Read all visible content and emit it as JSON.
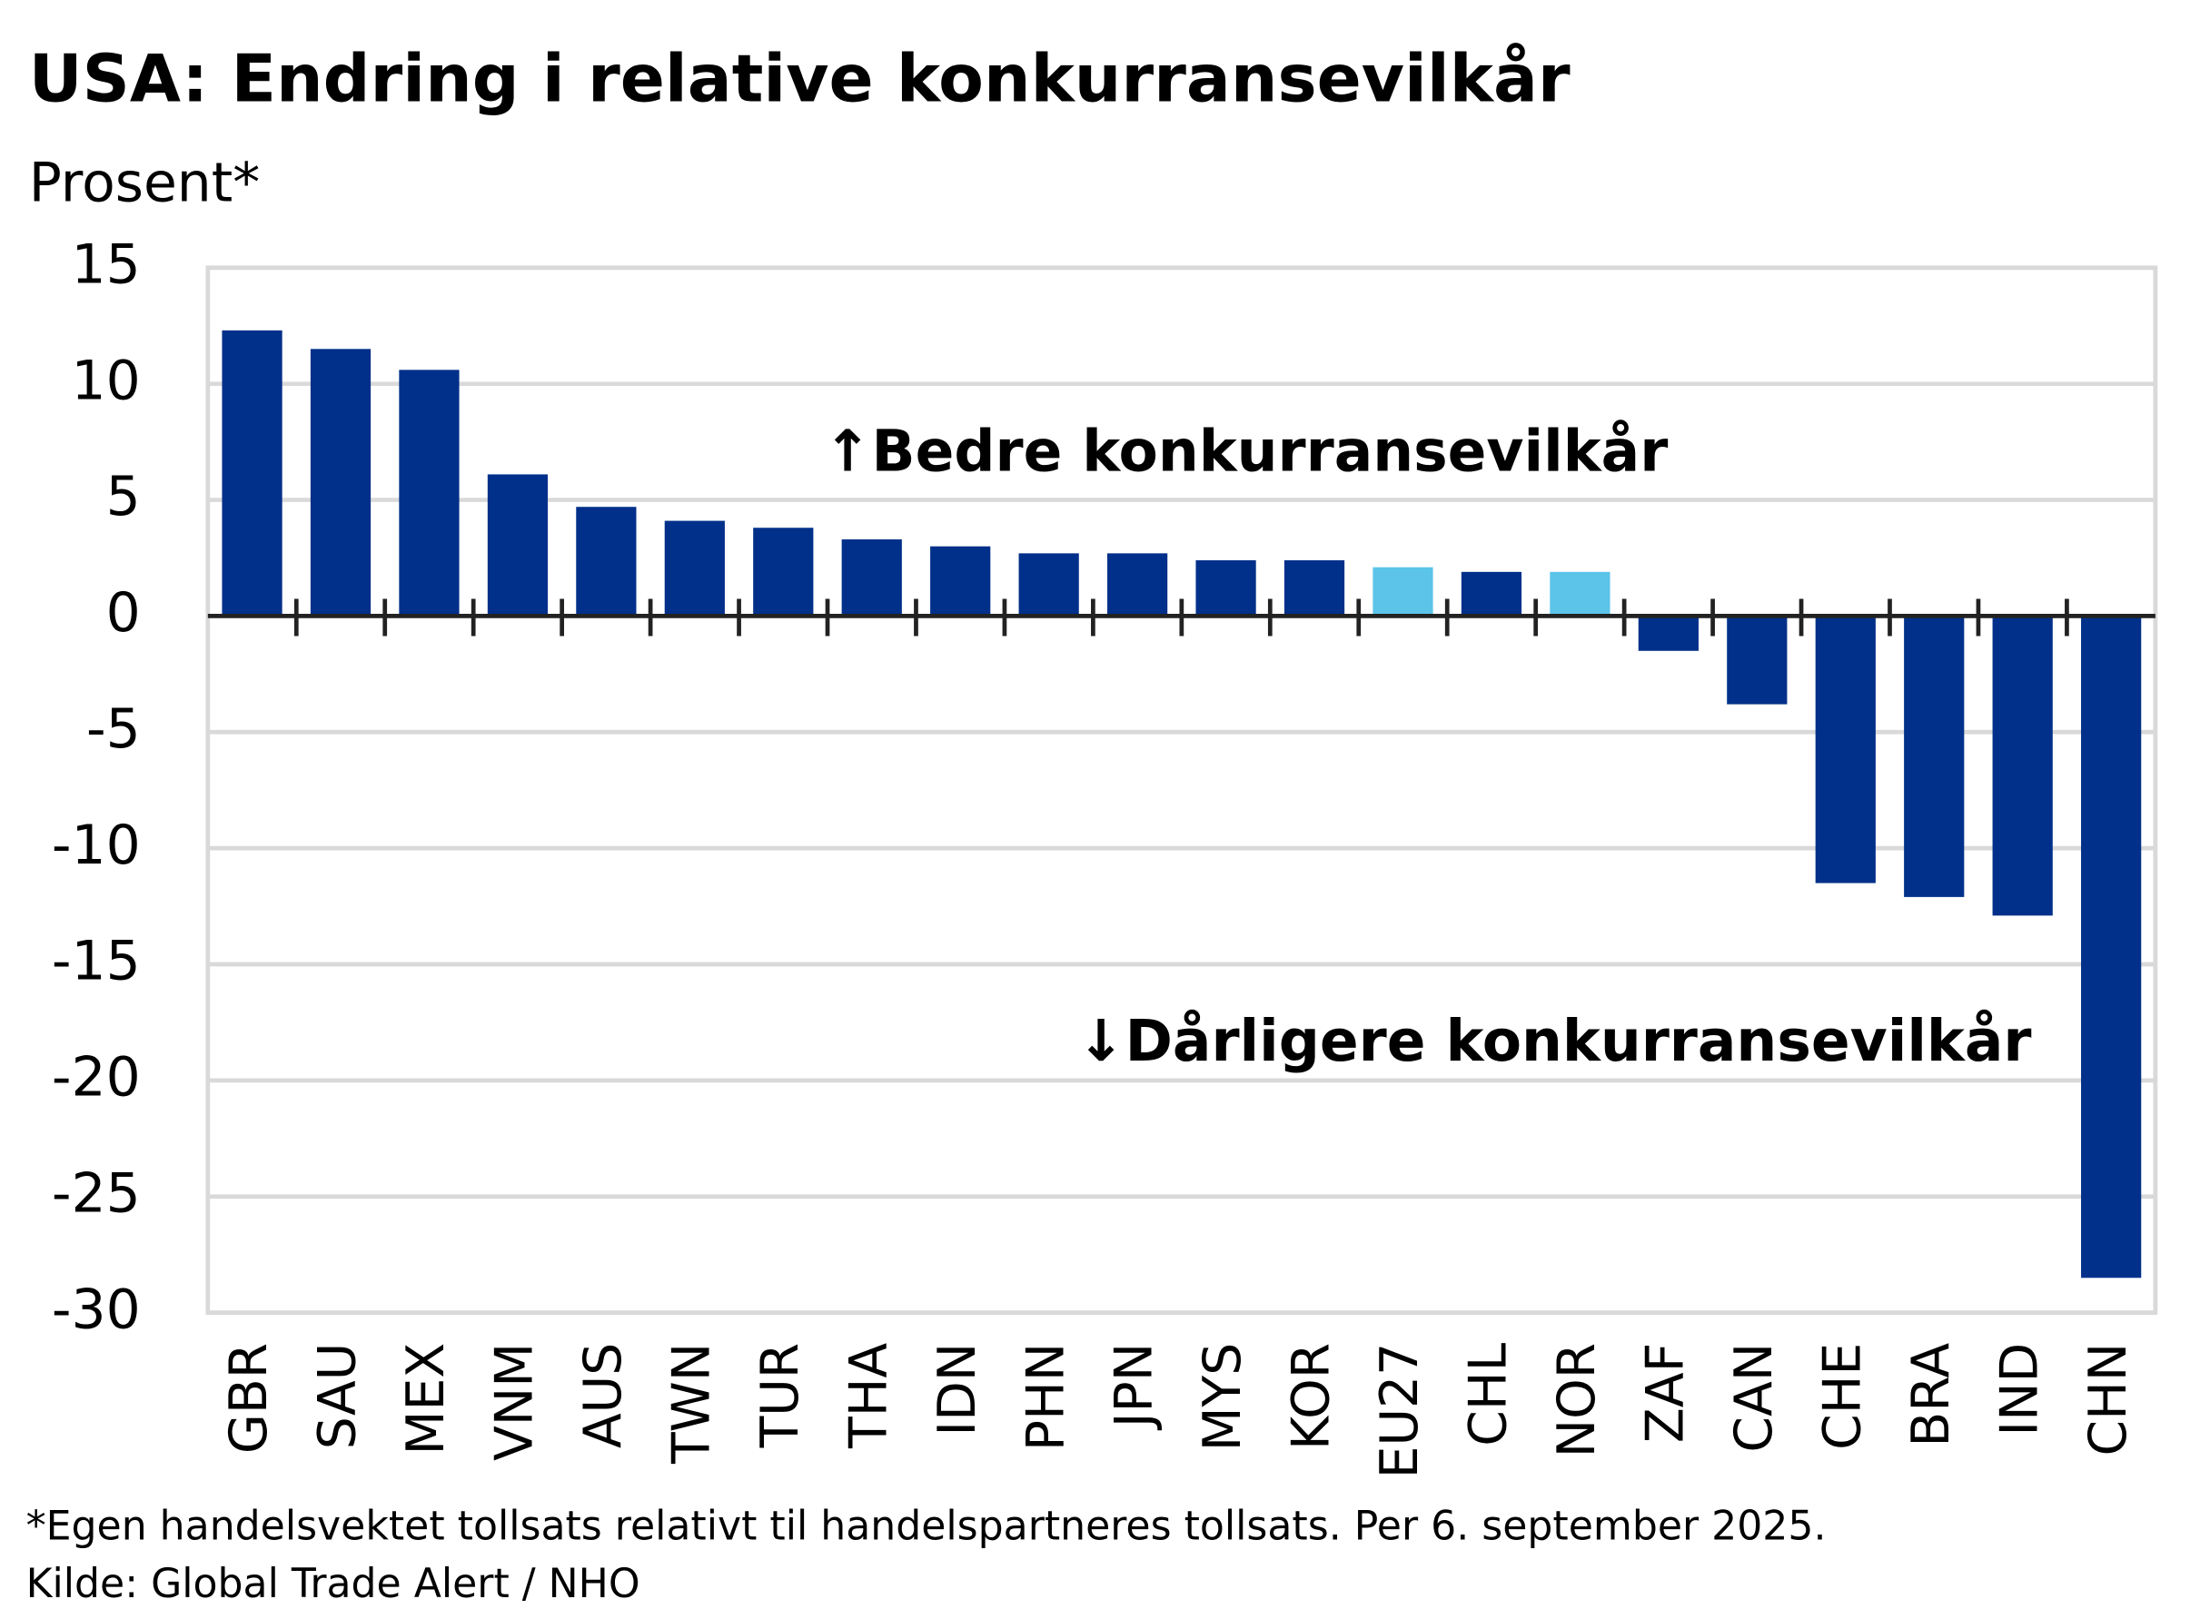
{
  "chart_data": {
    "type": "bar",
    "title": "USA:  Endring i relative konkurransevilkår",
    "subtitle": "Prosent*",
    "annotations": [
      "↑Bedre konkurransevilkår",
      "↓Dårligere konkurransevilkår"
    ],
    "footnotes": [
      "*Egen handelsvektet tollsats relativt til handelspartneres tollsats. Per 6. september 2025.",
      "Kilde: Global Trade Alert / NHO"
    ],
    "categories": [
      "GBR",
      "SAU",
      "MEX",
      "VNM",
      "AUS",
      "TWN",
      "TUR",
      "THA",
      "IDN",
      "PHN",
      "JPN",
      "MYS",
      "KOR",
      "EU27",
      "CHL",
      "NOR",
      "ZAF",
      "CAN",
      "CHE",
      "BRA",
      "IND",
      "CHN"
    ],
    "values": [
      12.3,
      11.5,
      10.6,
      6.1,
      4.7,
      4.1,
      3.8,
      3.3,
      3.0,
      2.7,
      2.7,
      2.4,
      2.4,
      2.1,
      1.9,
      1.9,
      -1.5,
      -3.8,
      -11.5,
      -12.1,
      -12.9,
      -28.5
    ],
    "colors": [
      "#00308a",
      "#00308a",
      "#00308a",
      "#00308a",
      "#00308a",
      "#00308a",
      "#00308a",
      "#00308a",
      "#00308a",
      "#00308a",
      "#00308a",
      "#00308a",
      "#00308a",
      "#5bc4e8",
      "#00308a",
      "#5bc4e8",
      "#00308a",
      "#00308a",
      "#00308a",
      "#00308a",
      "#00308a",
      "#00308a"
    ],
    "ylim": [
      -30,
      15
    ],
    "yticks": [
      15,
      10,
      5,
      0,
      -5,
      -10,
      -15,
      -20,
      -25,
      -30
    ],
    "grid": true
  }
}
